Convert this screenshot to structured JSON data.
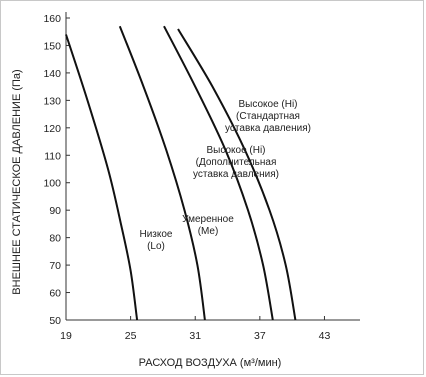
{
  "chart_data": {
    "type": "line",
    "xlabel": "РАСХОД ВОЗДУХА (м³/мин)",
    "ylabel": "ВНЕШНЕЕ СТАТИЧЕСКОЕ ДАВЛЕНИЕ (Па)",
    "xlim": [
      19,
      45
    ],
    "ylim": [
      50,
      160
    ],
    "xticks": [
      19,
      25,
      31,
      37,
      43
    ],
    "yticks": [
      50,
      60,
      70,
      80,
      90,
      100,
      110,
      120,
      130,
      140,
      150,
      160
    ],
    "grid": false,
    "series": [
      {
        "name": "Низкое (Lo)",
        "label_lines": [
          "Низкое",
          "(Lo)"
        ],
        "points": [
          [
            19.0,
            154
          ],
          [
            21.0,
            130
          ],
          [
            22.9,
            105
          ],
          [
            24.1,
            85
          ],
          [
            25.0,
            68
          ],
          [
            25.6,
            50
          ]
        ]
      },
      {
        "name": "Умеренное (Me)",
        "label_lines": [
          "Умеренное",
          "(Me)"
        ],
        "points": [
          [
            24.0,
            157
          ],
          [
            26.2,
            135
          ],
          [
            28.3,
            112
          ],
          [
            30.0,
            90
          ],
          [
            31.2,
            70
          ],
          [
            31.9,
            50
          ]
        ]
      },
      {
        "name": "Высокое (Hi) (Дополнительная уставка давления)",
        "label_lines": [
          "Высокое (Hi)",
          "(Дополнительная",
          "уставка давления)"
        ],
        "points": [
          [
            28.1,
            157
          ],
          [
            31.0,
            135
          ],
          [
            33.8,
            112
          ],
          [
            35.9,
            90
          ],
          [
            37.3,
            70
          ],
          [
            38.2,
            50
          ]
        ]
      },
      {
        "name": "Высокое (Hi) (Стандартная уставка давления)",
        "label_lines": [
          "Высокое (Hi)",
          "(Стандартная",
          "уставка давления)"
        ],
        "points": [
          [
            29.4,
            156
          ],
          [
            32.6,
            135
          ],
          [
            35.6,
            112
          ],
          [
            37.9,
            90
          ],
          [
            39.4,
            70
          ],
          [
            40.3,
            50
          ]
        ]
      }
    ]
  }
}
